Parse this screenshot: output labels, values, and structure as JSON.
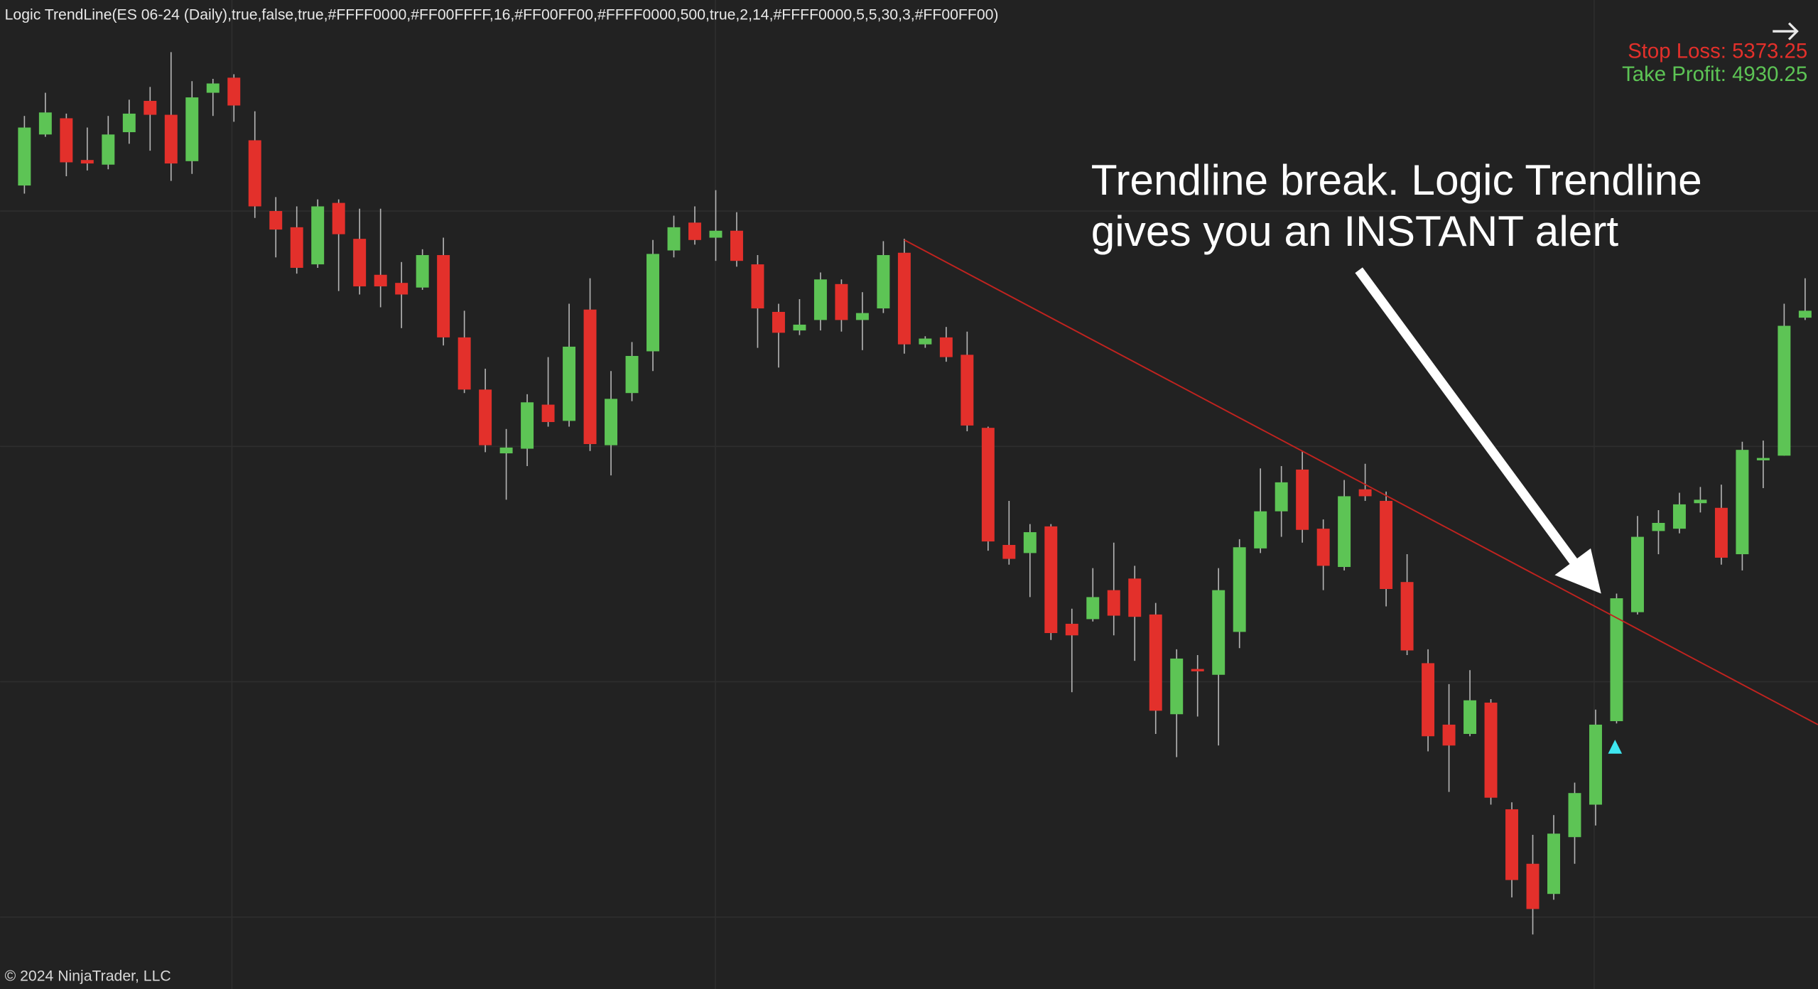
{
  "chart_data": {
    "type": "candlestick",
    "title": "Logic TrendLine(ES 06-24 (Daily),true,false,true,#FFFF0000,#FF00FFFF,16,#FF00FF00,#FFFF0000,500,true,2,14,#FFFF0000,5,5,30,3,#FF00FF00)",
    "stop_loss": "Stop Loss: 5373.25",
    "take_profit": "Take Profit: 4930.25",
    "annotation": [
      "Trendline break. Logic Trendline",
      "gives you an INSTANT alert"
    ],
    "copyright": "© 2024 NinjaTrader, LLC",
    "ylim": [
      0,
      853
    ],
    "up_color": "#5dc455",
    "down_color": "#e3302b",
    "open": [
      693,
      737,
      751,
      715,
      711,
      739,
      766,
      754,
      714,
      773,
      786,
      732,
      671,
      657,
      625,
      678,
      647,
      616,
      609,
      605,
      633,
      562,
      517,
      462,
      466,
      504,
      490,
      586,
      469,
      514,
      550,
      637,
      661,
      648,
      654,
      625,
      584,
      568,
      577,
      608,
      577,
      587,
      635,
      556,
      562,
      547,
      484,
      383,
      376,
      399,
      315,
      319,
      344,
      354,
      323,
      237,
      276,
      271,
      308,
      380,
      412,
      448,
      397,
      364,
      431,
      421,
      351,
      281,
      228,
      220,
      247,
      155,
      108,
      82,
      131,
      159,
      231,
      325,
      395,
      397,
      419,
      415,
      375,
      456,
      460,
      579
    ],
    "high": [
      753,
      773,
      755,
      743,
      753,
      767,
      778,
      808,
      783,
      785,
      789,
      757,
      683,
      675,
      681,
      681,
      673,
      673,
      627,
      638,
      648,
      585,
      535,
      483,
      513,
      545,
      591,
      613,
      533,
      558,
      646,
      667,
      675,
      689,
      670,
      633,
      591,
      595,
      618,
      612,
      601,
      645,
      647,
      563,
      571,
      567,
      485,
      421,
      401,
      401,
      328,
      363,
      385,
      365,
      333,
      293,
      288,
      363,
      388,
      449,
      451,
      464,
      405,
      439,
      453,
      429,
      375,
      293,
      263,
      275,
      250,
      161,
      133,
      150,
      178,
      241,
      341,
      408,
      413,
      428,
      433,
      435,
      472,
      473,
      591,
      613
    ],
    "low": [
      686,
      735,
      701,
      706,
      707,
      729,
      723,
      697,
      703,
      753,
      748,
      665,
      631,
      617,
      622,
      602,
      599,
      588,
      570,
      603,
      555,
      514,
      463,
      422,
      451,
      485,
      485,
      464,
      443,
      507,
      533,
      631,
      642,
      628,
      623,
      553,
      536,
      564,
      568,
      567,
      551,
      583,
      548,
      553,
      541,
      481,
      378,
      366,
      338,
      301,
      256,
      317,
      305,
      283,
      220,
      200,
      235,
      210,
      294,
      376,
      390,
      385,
      344,
      361,
      421,
      330,
      288,
      205,
      170,
      218,
      159,
      79,
      47,
      77,
      108,
      141,
      229,
      323,
      375,
      393,
      411,
      366,
      361,
      432,
      460,
      577
    ],
    "close": [
      743,
      756,
      713,
      712,
      737,
      755,
      754,
      712,
      769,
      781,
      762,
      675,
      655,
      622,
      675,
      651,
      606,
      606,
      599,
      633,
      562,
      517,
      469,
      467,
      506,
      489,
      554,
      470,
      509,
      546,
      634,
      657,
      646,
      654,
      628,
      587,
      566,
      573,
      612,
      577,
      583,
      633,
      556,
      561,
      545,
      486,
      386,
      371,
      394,
      307,
      305,
      338,
      322,
      321,
      240,
      285,
      274,
      344,
      381,
      412,
      437,
      396,
      365,
      425,
      425,
      345,
      292,
      218,
      210,
      249,
      165,
      94,
      69,
      134,
      169,
      228,
      337,
      390,
      402,
      418,
      422,
      372,
      465,
      458,
      572,
      585
    ]
  }
}
